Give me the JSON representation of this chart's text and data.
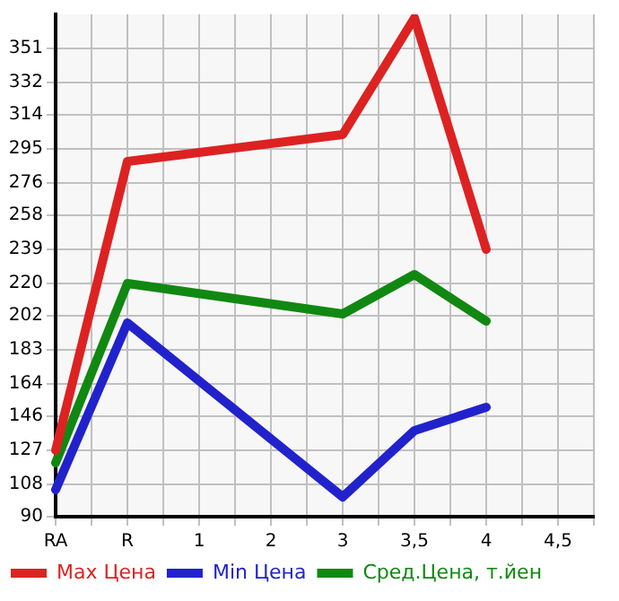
{
  "chart_data": {
    "type": "line",
    "categories": [
      "RA",
      null,
      "R",
      null,
      "1",
      null,
      "2",
      null,
      "3",
      null,
      "3,5",
      null,
      "4",
      null,
      "4,5",
      null
    ],
    "series": [
      {
        "name": "Max Цена",
        "color": "#dd2222",
        "values": [
          127,
          null,
          288,
          null,
          null,
          null,
          null,
          null,
          303,
          null,
          368,
          null,
          239,
          null,
          null,
          null
        ]
      },
      {
        "name": "Min Цена",
        "color": "#2222cc",
        "values": [
          105,
          null,
          198,
          null,
          null,
          null,
          null,
          null,
          101,
          null,
          138,
          null,
          151,
          null,
          null,
          null
        ]
      },
      {
        "name": "Сред.Цена, т.йен",
        "color": "#118811",
        "values": [
          120,
          null,
          220,
          null,
          null,
          null,
          null,
          null,
          203,
          null,
          225,
          null,
          199,
          null,
          null,
          null
        ]
      }
    ],
    "ylim": [
      90,
      370
    ],
    "yticks": [
      90,
      108,
      127,
      146,
      164,
      183,
      202,
      220,
      239,
      258,
      276,
      295,
      314,
      332,
      351
    ],
    "grid": true,
    "legend": "bottom",
    "marker": "none",
    "line_style": "solid"
  }
}
